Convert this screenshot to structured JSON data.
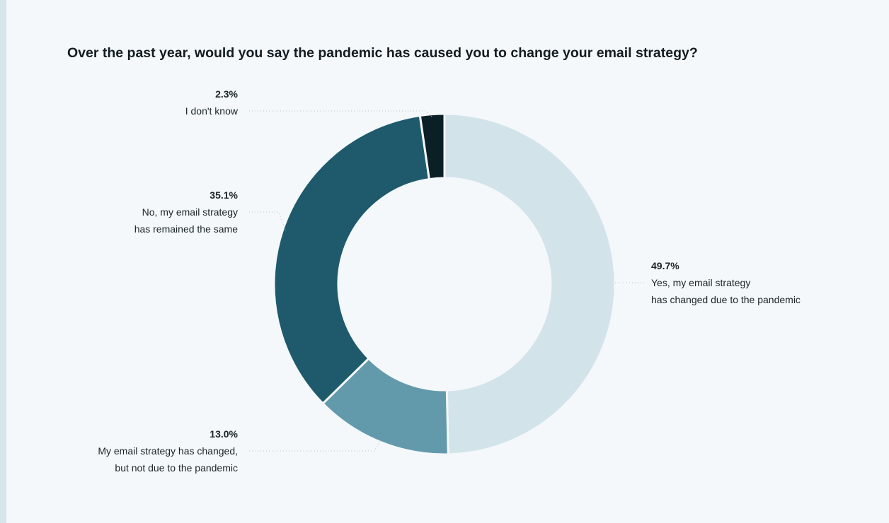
{
  "chart_data": {
    "type": "donut",
    "title": "Over the past year, would you say the pandemic has caused you to change your email strategy?",
    "start_angle_deg": 0,
    "direction": "clockwise",
    "slices": [
      {
        "id": "yes",
        "value": 49.7,
        "pct_label": "49.7%",
        "lines": [
          "Yes, my email strategy",
          "has changed due to the pandemic"
        ],
        "color": "#d3e3ea",
        "side": "right"
      },
      {
        "id": "changed-not-pandemic",
        "value": 13.0,
        "pct_label": "13.0%",
        "lines": [
          "My email strategy has changed,",
          "but not due to the pandemic"
        ],
        "color": "#639aab",
        "side": "left"
      },
      {
        "id": "no",
        "value": 35.1,
        "pct_label": "35.1%",
        "lines": [
          "No, my email strategy",
          "has remained the same"
        ],
        "color": "#1e5a6b",
        "side": "left"
      },
      {
        "id": "dont-know",
        "value": 2.3,
        "pct_label": "2.3%",
        "lines": [
          "I don't know"
        ],
        "color": "#0b1f26",
        "side": "left"
      }
    ]
  }
}
